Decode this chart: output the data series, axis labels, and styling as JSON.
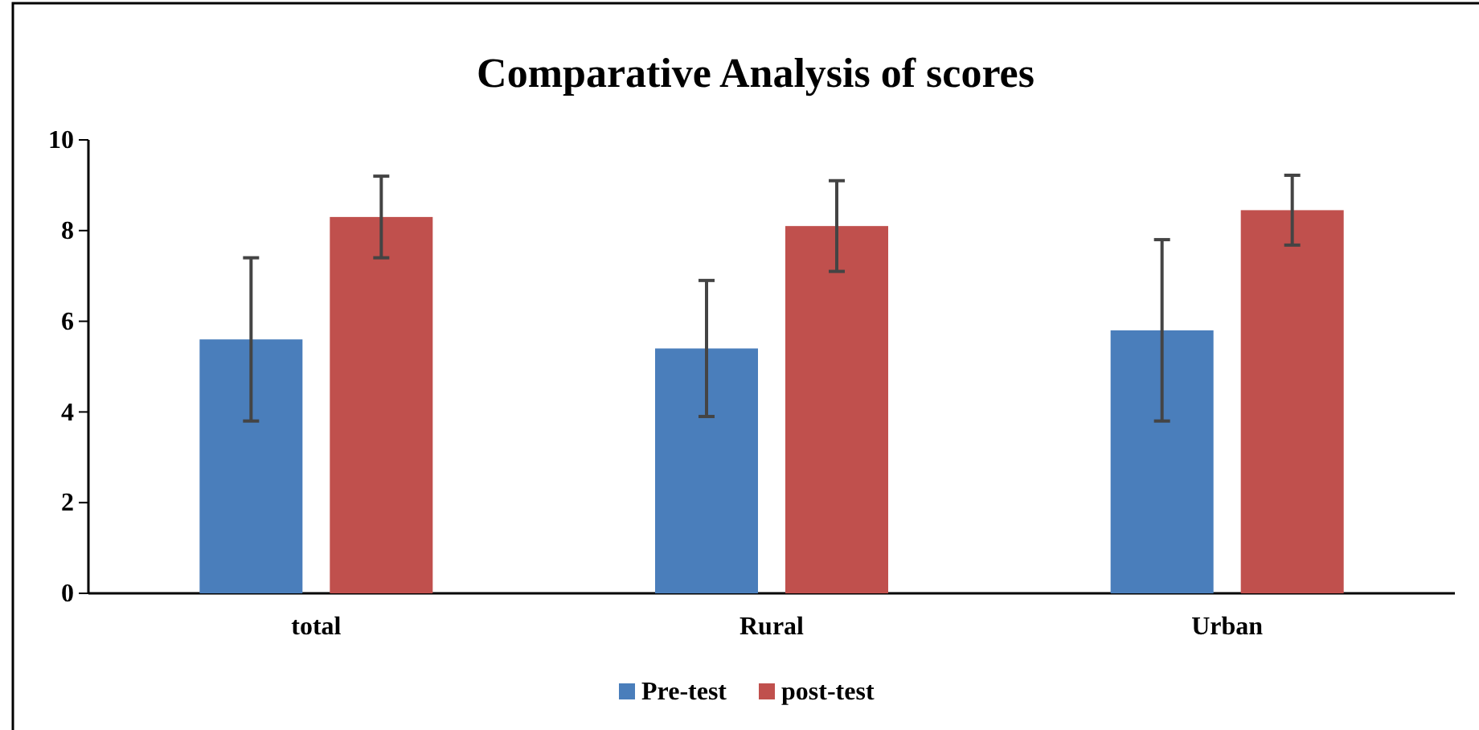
{
  "chart_data": {
    "type": "bar",
    "title": "Comparative Analysis of scores",
    "categories": [
      "total",
      "Rural",
      "Urban"
    ],
    "series": [
      {
        "name": "Pre-test",
        "color": "#4a7ebb",
        "values": [
          5.6,
          5.4,
          5.8
        ],
        "errors": [
          1.8,
          1.5,
          2.0
        ]
      },
      {
        "name": "post-test",
        "color": "#c0504d",
        "values": [
          8.3,
          8.1,
          8.45
        ],
        "errors": [
          0.9,
          1.0,
          0.77
        ]
      }
    ],
    "ylim": [
      0,
      10
    ],
    "yticks": [
      0,
      2,
      4,
      6,
      8,
      10
    ],
    "grid": false,
    "legend": "bottom"
  }
}
